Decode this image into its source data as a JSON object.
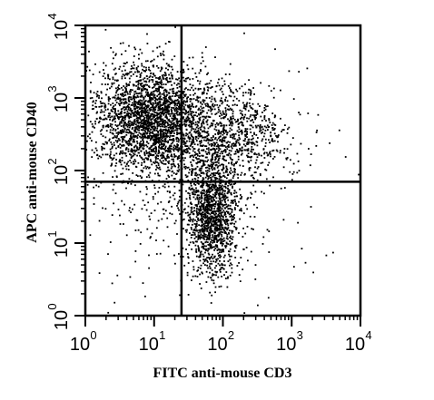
{
  "chart_data": {
    "type": "scatter",
    "subtype": "flow-cytometry-dot-plot",
    "xlabel": "FITC anti-mouse CD3",
    "ylabel": "APC anti-mouse CD40",
    "x_scale": "log",
    "y_scale": "log",
    "xlim": [
      1,
      10000
    ],
    "ylim": [
      1,
      10000
    ],
    "x_ticks": [
      {
        "base": "10",
        "exp": "0"
      },
      {
        "base": "10",
        "exp": "1"
      },
      {
        "base": "10",
        "exp": "2"
      },
      {
        "base": "10",
        "exp": "3"
      },
      {
        "base": "10",
        "exp": "4"
      }
    ],
    "y_ticks": [
      {
        "base": "10",
        "exp": "0"
      },
      {
        "base": "10",
        "exp": "1"
      },
      {
        "base": "10",
        "exp": "2"
      },
      {
        "base": "10",
        "exp": "3"
      },
      {
        "base": "10",
        "exp": "4"
      }
    ],
    "quadrant_gates": {
      "x_threshold": 25,
      "y_threshold": 70
    },
    "populations": [
      {
        "center": [
          10,
          500
        ],
        "spread_decades": [
          0.45,
          0.38
        ],
        "approx_events": 2600
      },
      {
        "center": [
          70,
          25
        ],
        "spread_decades": [
          0.18,
          0.4
        ],
        "approx_events": 1300
      },
      {
        "center": [
          150,
          300
        ],
        "spread_decades": [
          0.4,
          0.3
        ],
        "approx_events": 700
      },
      {
        "center": [
          40,
          70
        ],
        "spread_decades": [
          0.7,
          0.8
        ],
        "approx_events": 500
      }
    ],
    "point_color": "#000000",
    "grid": false,
    "legend": "none"
  }
}
